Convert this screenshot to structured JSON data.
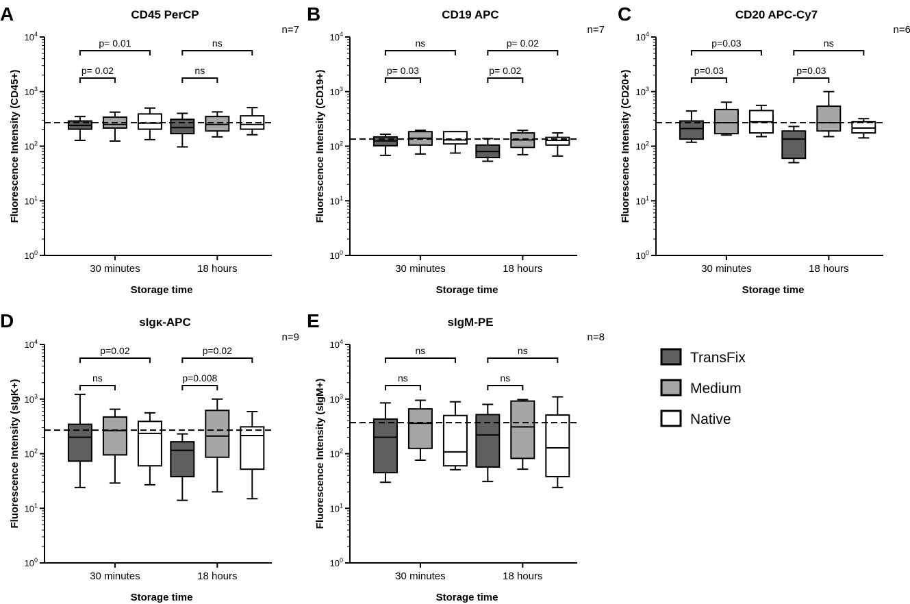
{
  "legend": {
    "items": [
      {
        "label": "TransFix",
        "color": "#5f5f5f"
      },
      {
        "label": "Medium",
        "color": "#a6a6a6"
      },
      {
        "label": "Native",
        "color": "#ffffff"
      }
    ]
  },
  "chart_data": [
    {
      "panel_letter": "A",
      "type": "box",
      "title": "CD45 PerCP",
      "ylabel": "Fluorescence Intensity (CD45+)",
      "xlabel": "Storage time",
      "n_label": "n=7",
      "yscale": "log",
      "ylim": [
        1,
        10000
      ],
      "yticks": [
        {
          "exp": "0"
        },
        {
          "exp": "1"
        },
        {
          "exp": "2"
        },
        {
          "exp": "3"
        },
        {
          "exp": "4"
        }
      ],
      "categories": [
        "30 minutes",
        "18 hours"
      ],
      "series": [
        "TransFix",
        "Medium",
        "Native"
      ],
      "reference_line": 270,
      "boxes": [
        {
          "category": 0,
          "series": 0,
          "whisker_low": 128,
          "q1": 205,
          "median": 240,
          "q3": 290,
          "whisker_high": 350
        },
        {
          "category": 0,
          "series": 1,
          "whisker_low": 124,
          "q1": 215,
          "median": 250,
          "q3": 340,
          "whisker_high": 420
        },
        {
          "category": 0,
          "series": 2,
          "whisker_low": 132,
          "q1": 205,
          "median": 265,
          "q3": 390,
          "whisker_high": 500
        },
        {
          "category": 1,
          "series": 0,
          "whisker_low": 97,
          "q1": 170,
          "median": 220,
          "q3": 310,
          "whisker_high": 400
        },
        {
          "category": 1,
          "series": 1,
          "whisker_low": 148,
          "q1": 190,
          "median": 250,
          "q3": 350,
          "whisker_high": 425
        },
        {
          "category": 1,
          "series": 2,
          "whisker_low": 162,
          "q1": 205,
          "median": 250,
          "q3": 360,
          "whisker_high": 510
        }
      ],
      "comparisons": [
        {
          "category": 0,
          "from": 0,
          "to": 1,
          "level": 1,
          "label": "p= 0.02"
        },
        {
          "category": 0,
          "from": 0,
          "to": 2,
          "level": 2,
          "label": "p= 0.01"
        },
        {
          "category": 1,
          "from": 0,
          "to": 1,
          "level": 1,
          "label": "ns"
        },
        {
          "category": 1,
          "from": 0,
          "to": 2,
          "level": 2,
          "label": "ns"
        }
      ]
    },
    {
      "panel_letter": "B",
      "type": "box",
      "title": "CD19 APC",
      "ylabel": "Fluorescence Intensity (CD19+)",
      "xlabel": "Storage time",
      "n_label": "n=7",
      "yscale": "log",
      "ylim": [
        1,
        10000
      ],
      "yticks": [
        {
          "exp": "0"
        },
        {
          "exp": "1"
        },
        {
          "exp": "2"
        },
        {
          "exp": "3"
        },
        {
          "exp": "4"
        }
      ],
      "categories": [
        "30 minutes",
        "18 hours"
      ],
      "series": [
        "TransFix",
        "Medium",
        "Native"
      ],
      "reference_line": 135,
      "boxes": [
        {
          "category": 0,
          "series": 0,
          "whisker_low": 68,
          "q1": 102,
          "median": 125,
          "q3": 148,
          "whisker_high": 165
        },
        {
          "category": 0,
          "series": 1,
          "whisker_low": 72,
          "q1": 105,
          "median": 140,
          "q3": 185,
          "whisker_high": 195
        },
        {
          "category": 0,
          "series": 2,
          "whisker_low": 75,
          "q1": 110,
          "median": 130,
          "q3": 185,
          "whisker_high": 185
        },
        {
          "category": 1,
          "series": 0,
          "whisker_low": 53,
          "q1": 62,
          "median": 80,
          "q3": 105,
          "whisker_high": 138
        },
        {
          "category": 1,
          "series": 1,
          "whisker_low": 70,
          "q1": 95,
          "median": 130,
          "q3": 175,
          "whisker_high": 195
        },
        {
          "category": 1,
          "series": 2,
          "whisker_low": 66,
          "q1": 105,
          "median": 128,
          "q3": 145,
          "whisker_high": 175
        }
      ],
      "comparisons": [
        {
          "category": 0,
          "from": 0,
          "to": 1,
          "level": 1,
          "label": "p= 0.03"
        },
        {
          "category": 0,
          "from": 0,
          "to": 2,
          "level": 2,
          "label": "ns"
        },
        {
          "category": 1,
          "from": 0,
          "to": 1,
          "level": 1,
          "label": "p= 0.02"
        },
        {
          "category": 1,
          "from": 0,
          "to": 2,
          "level": 2,
          "label": "p= 0.02"
        }
      ]
    },
    {
      "panel_letter": "C",
      "type": "box",
      "title": "CD20 APC-Cy7",
      "ylabel": "Fluorescence Intensity (CD20+)",
      "xlabel": "Storage time",
      "n_label": "n=6",
      "yscale": "log",
      "ylim": [
        1,
        10000
      ],
      "yticks": [
        {
          "exp": "0"
        },
        {
          "exp": "1"
        },
        {
          "exp": "2"
        },
        {
          "exp": "3"
        },
        {
          "exp": "4"
        }
      ],
      "categories": [
        "30 minutes",
        "18 hours"
      ],
      "series": [
        "TransFix",
        "Medium",
        "Native"
      ],
      "reference_line": 270,
      "boxes": [
        {
          "category": 0,
          "series": 0,
          "whisker_low": 118,
          "q1": 135,
          "median": 210,
          "q3": 290,
          "whisker_high": 440
        },
        {
          "category": 0,
          "series": 1,
          "whisker_low": 160,
          "q1": 170,
          "median": 270,
          "q3": 470,
          "whisker_high": 640
        },
        {
          "category": 0,
          "series": 2,
          "whisker_low": 150,
          "q1": 175,
          "median": 280,
          "q3": 450,
          "whisker_high": 560
        },
        {
          "category": 1,
          "series": 0,
          "whisker_low": 50,
          "q1": 60,
          "median": 135,
          "q3": 190,
          "whisker_high": 230
        },
        {
          "category": 1,
          "series": 1,
          "whisker_low": 150,
          "q1": 190,
          "median": 270,
          "q3": 540,
          "whisker_high": 1000
        },
        {
          "category": 1,
          "series": 2,
          "whisker_low": 142,
          "q1": 175,
          "median": 215,
          "q3": 280,
          "whisker_high": 320
        }
      ],
      "comparisons": [
        {
          "category": 0,
          "from": 0,
          "to": 1,
          "level": 1,
          "label": "p=0.03"
        },
        {
          "category": 0,
          "from": 0,
          "to": 2,
          "level": 2,
          "label": "p=0.03"
        },
        {
          "category": 1,
          "from": 0,
          "to": 1,
          "level": 1,
          "label": "p=0.03"
        },
        {
          "category": 1,
          "from": 0,
          "to": 2,
          "level": 2,
          "label": "ns"
        }
      ]
    },
    {
      "panel_letter": "D",
      "type": "box",
      "title": "sIgκ-APC",
      "ylabel": "Fluorescence Intensity (sIgK+)",
      "xlabel": "Storage time",
      "n_label": "n=9",
      "yscale": "log",
      "ylim": [
        1,
        10000
      ],
      "yticks": [
        {
          "exp": "0"
        },
        {
          "exp": "1"
        },
        {
          "exp": "2"
        },
        {
          "exp": "3"
        },
        {
          "exp": "4"
        }
      ],
      "categories": [
        "30 minutes",
        "18 hours"
      ],
      "series": [
        "TransFix",
        "Medium",
        "Native"
      ],
      "reference_line": 270,
      "boxes": [
        {
          "category": 0,
          "series": 0,
          "whisker_low": 24,
          "q1": 73,
          "median": 200,
          "q3": 345,
          "whisker_high": 1220
        },
        {
          "category": 0,
          "series": 1,
          "whisker_low": 29,
          "q1": 95,
          "median": 265,
          "q3": 470,
          "whisker_high": 650
        },
        {
          "category": 0,
          "series": 2,
          "whisker_low": 27,
          "q1": 60,
          "median": 235,
          "q3": 390,
          "whisker_high": 560
        },
        {
          "category": 1,
          "series": 0,
          "whisker_low": 14,
          "q1": 38,
          "median": 115,
          "q3": 165,
          "whisker_high": 230
        },
        {
          "category": 1,
          "series": 1,
          "whisker_low": 20,
          "q1": 86,
          "median": 210,
          "q3": 620,
          "whisker_high": 1000
        },
        {
          "category": 1,
          "series": 2,
          "whisker_low": 15,
          "q1": 52,
          "median": 215,
          "q3": 310,
          "whisker_high": 590
        }
      ],
      "comparisons": [
        {
          "category": 0,
          "from": 0,
          "to": 1,
          "level": 1,
          "label": "ns"
        },
        {
          "category": 0,
          "from": 0,
          "to": 2,
          "level": 2,
          "label": "p=0.02"
        },
        {
          "category": 1,
          "from": 0,
          "to": 1,
          "level": 1,
          "label": "p=0.008"
        },
        {
          "category": 1,
          "from": 0,
          "to": 2,
          "level": 2,
          "label": "p=0.02"
        }
      ]
    },
    {
      "panel_letter": "E",
      "type": "box",
      "title": "sIgM-PE",
      "ylabel": "Fluorescence Intensity (sIgM+)",
      "xlabel": "Storage time",
      "n_label": "n=8",
      "yscale": "log",
      "ylim": [
        1,
        10000
      ],
      "yticks": [
        {
          "exp": "0"
        },
        {
          "exp": "1"
        },
        {
          "exp": "2"
        },
        {
          "exp": "3"
        },
        {
          "exp": "4"
        }
      ],
      "categories": [
        "30 minutes",
        "18 hours"
      ],
      "series": [
        "TransFix",
        "Medium",
        "Native"
      ],
      "reference_line": 370,
      "boxes": [
        {
          "category": 0,
          "series": 0,
          "whisker_low": 30,
          "q1": 45,
          "median": 200,
          "q3": 430,
          "whisker_high": 850
        },
        {
          "category": 0,
          "series": 1,
          "whisker_low": 76,
          "q1": 125,
          "median": 360,
          "q3": 660,
          "whisker_high": 950
        },
        {
          "category": 0,
          "series": 2,
          "whisker_low": 51,
          "q1": 60,
          "median": 108,
          "q3": 500,
          "whisker_high": 890
        },
        {
          "category": 1,
          "series": 0,
          "whisker_low": 31,
          "q1": 57,
          "median": 220,
          "q3": 520,
          "whisker_high": 800
        },
        {
          "category": 1,
          "series": 1,
          "whisker_low": 52,
          "q1": 82,
          "median": 310,
          "q3": 920,
          "whisker_high": 980
        },
        {
          "category": 1,
          "series": 2,
          "whisker_low": 24,
          "q1": 38,
          "median": 128,
          "q3": 510,
          "whisker_high": 1100
        }
      ],
      "comparisons": [
        {
          "category": 0,
          "from": 0,
          "to": 1,
          "level": 1,
          "label": "ns"
        },
        {
          "category": 0,
          "from": 0,
          "to": 2,
          "level": 2,
          "label": "ns"
        },
        {
          "category": 1,
          "from": 0,
          "to": 1,
          "level": 1,
          "label": "ns"
        },
        {
          "category": 1,
          "from": 0,
          "to": 2,
          "level": 2,
          "label": "ns"
        }
      ]
    }
  ]
}
